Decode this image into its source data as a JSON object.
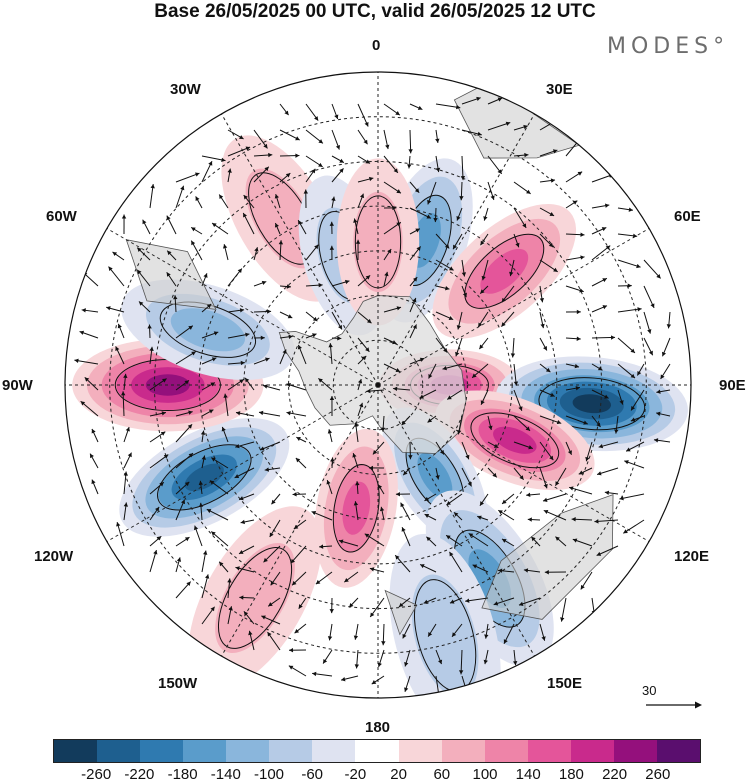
{
  "title": "Base 26/05/2025 00 UTC, valid 26/05/2025 12 UTC",
  "brand": "MODES°",
  "longitude_labels": {
    "lon_0": "0",
    "lon_30e": "30E",
    "lon_60e": "60E",
    "lon_90e": "90E",
    "lon_120e": "120E",
    "lon_150e": "150E",
    "lon_180": "180",
    "lon_150w": "150W",
    "lon_120w": "120W",
    "lon_90w": "90W",
    "lon_60w": "60W",
    "lon_30w": "30W"
  },
  "reference_vector": {
    "label": "30"
  },
  "colorbar": {
    "colors": [
      "#123b5c",
      "#1e5f8f",
      "#2f7ab0",
      "#5a9ccb",
      "#8ab6dc",
      "#b6cbe6",
      "#dfe3f1",
      "#ffffff",
      "#f8d6d9",
      "#f3afbd",
      "#ee84a8",
      "#e4559a",
      "#c92a8c",
      "#94107c",
      "#5a0e6e"
    ],
    "ticks": [
      "-260",
      "-220",
      "-180",
      "-140",
      "-100",
      "-60",
      "-20",
      "20",
      "60",
      "100",
      "140",
      "180",
      "220",
      "260"
    ]
  },
  "anomaly_features": [
    {
      "type": "positive",
      "lon": 90,
      "colat": 16,
      "peak": 180
    },
    {
      "type": "negative",
      "lon": 18,
      "colat": 34,
      "peak": -140
    },
    {
      "type": "positive",
      "lon": 48,
      "colat": 38,
      "peak": 140
    },
    {
      "type": "negative",
      "lon": 95,
      "colat": 48,
      "peak": -260
    },
    {
      "type": "positive",
      "lon": 112,
      "colat": 33,
      "peak": 180
    },
    {
      "type": "negative",
      "lon": 148,
      "colat": 24,
      "peak": -140
    },
    {
      "type": "negative",
      "lon": 150,
      "colat": 50,
      "peak": -140
    },
    {
      "type": "positive",
      "lon": -170,
      "colat": 28,
      "peak": 140
    },
    {
      "type": "negative",
      "lon": -118,
      "colat": 44,
      "peak": -220
    },
    {
      "type": "positive",
      "lon": -90,
      "colat": 47,
      "peak": 220
    },
    {
      "type": "negative",
      "lon": -72,
      "colat": 40,
      "peak": -100
    },
    {
      "type": "positive",
      "lon": -30,
      "colat": 43,
      "peak": 60
    },
    {
      "type": "negative",
      "lon": -15,
      "colat": 30,
      "peak": -60
    },
    {
      "type": "positive",
      "lon": 0,
      "colat": 32,
      "peak": 60
    },
    {
      "type": "negative",
      "lon": 165,
      "colat": 58,
      "peak": -60
    },
    {
      "type": "positive",
      "lon": -150,
      "colat": 55,
      "peak": 60
    }
  ]
}
